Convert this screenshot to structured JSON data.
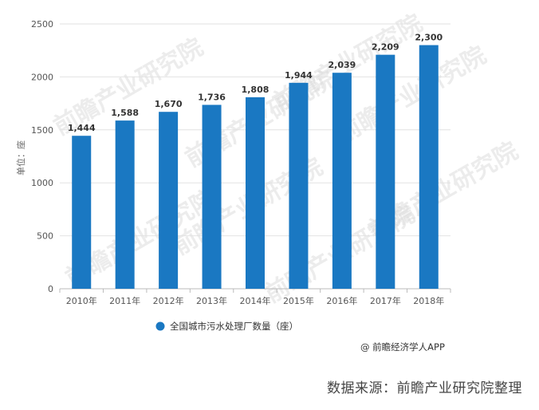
{
  "chart_data": {
    "type": "bar",
    "categories": [
      "2010年",
      "2011年",
      "2012年",
      "2013年",
      "2014年",
      "2015年",
      "2016年",
      "2017年",
      "2018年"
    ],
    "series": [
      {
        "name": "全国城市污水处理厂数量（座）",
        "values": [
          1444,
          1588,
          1670,
          1736,
          1808,
          1944,
          2039,
          2209,
          2300
        ]
      }
    ],
    "data_labels": [
      "1,444",
      "1,588",
      "1,670",
      "1,736",
      "1,808",
      "1,944",
      "2,039",
      "2,209",
      "2,300"
    ],
    "ylabel": "单位：座",
    "ylim": [
      0,
      2500
    ],
    "yticks": [
      0,
      500,
      1000,
      1500,
      2000,
      2500
    ],
    "grid": true,
    "legend_position": "bottom",
    "colors": {
      "bar": "#1a78c2",
      "grid": "#e2e2e2",
      "axis": "#bbbbbb"
    }
  },
  "watermark": "前瞻产业研究院",
  "credit": "@ 前瞻经济学人APP",
  "source": "数据来源：前瞻产业研究院整理"
}
